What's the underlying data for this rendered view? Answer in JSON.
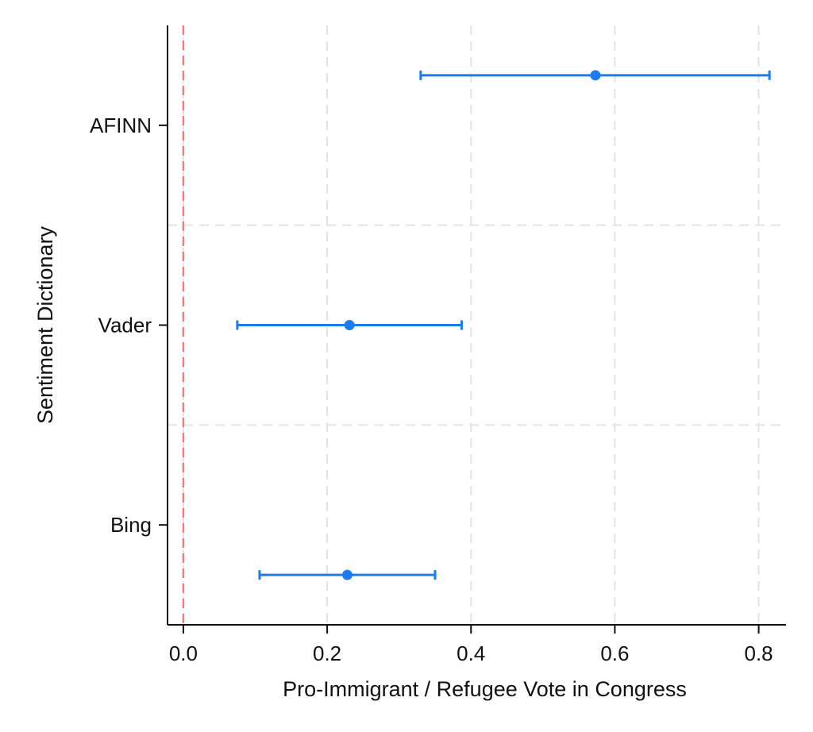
{
  "chart_data": {
    "type": "coefficient_plot",
    "xlabel": "Pro-Immigrant / Refugee Vote in Congress",
    "ylabel": "Sentiment Dictionary",
    "xlim": [
      -0.022,
      0.838
    ],
    "x_ticks": [
      0.0,
      0.2,
      0.4,
      0.6,
      0.8
    ],
    "x_tick_labels": [
      "0.0",
      "0.2",
      "0.4",
      "0.6",
      "0.8"
    ],
    "categories": [
      "AFINN",
      "Vader",
      "Bing"
    ],
    "points": [
      {
        "label": "AFINN",
        "estimate": 0.573,
        "lower": 0.33,
        "upper": 0.815
      },
      {
        "label": "Vader",
        "estimate": 0.231,
        "lower": 0.075,
        "upper": 0.387
      },
      {
        "label": "Bing",
        "estimate": 0.228,
        "lower": 0.106,
        "upper": 0.35
      }
    ],
    "reference_line": {
      "x": 0.0,
      "style": "dashed",
      "color": "#f08080"
    },
    "grid": true,
    "colors": {
      "points": "#1a7cf0",
      "axis": "#111111",
      "grid": "#e4e4e4"
    }
  }
}
